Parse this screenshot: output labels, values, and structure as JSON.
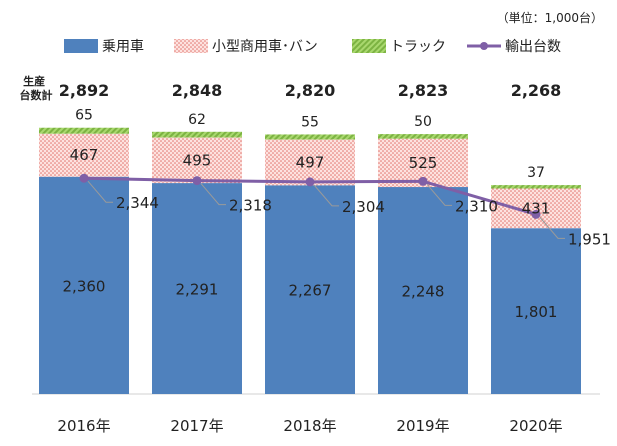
{
  "chart_data": {
    "type": "bar",
    "stacked": true,
    "unit_note": "（単位：1,000台）",
    "total_label": "生産\n台数計",
    "categories": [
      "2016年",
      "2017年",
      "2018年",
      "2019年",
      "2020年"
    ],
    "series": [
      {
        "name": "乗用車",
        "values": [
          2360,
          2291,
          2267,
          2248,
          1801
        ],
        "color": "#4f81bd"
      },
      {
        "name": "小型商用車･バン",
        "values": [
          467,
          495,
          497,
          525,
          431
        ],
        "color": "#f6b9b4"
      },
      {
        "name": "トラック",
        "values": [
          65,
          62,
          55,
          50,
          37
        ],
        "color": "#92d050"
      }
    ],
    "totals": [
      2892,
      2848,
      2820,
      2823,
      2268
    ],
    "line_series": {
      "name": "輸出台数",
      "values": [
        2344,
        2318,
        2304,
        2310,
        1951
      ],
      "color": "#7f5fa6"
    },
    "ylim": [
      0,
      2900
    ],
    "grid": false,
    "legend_position": "top"
  }
}
